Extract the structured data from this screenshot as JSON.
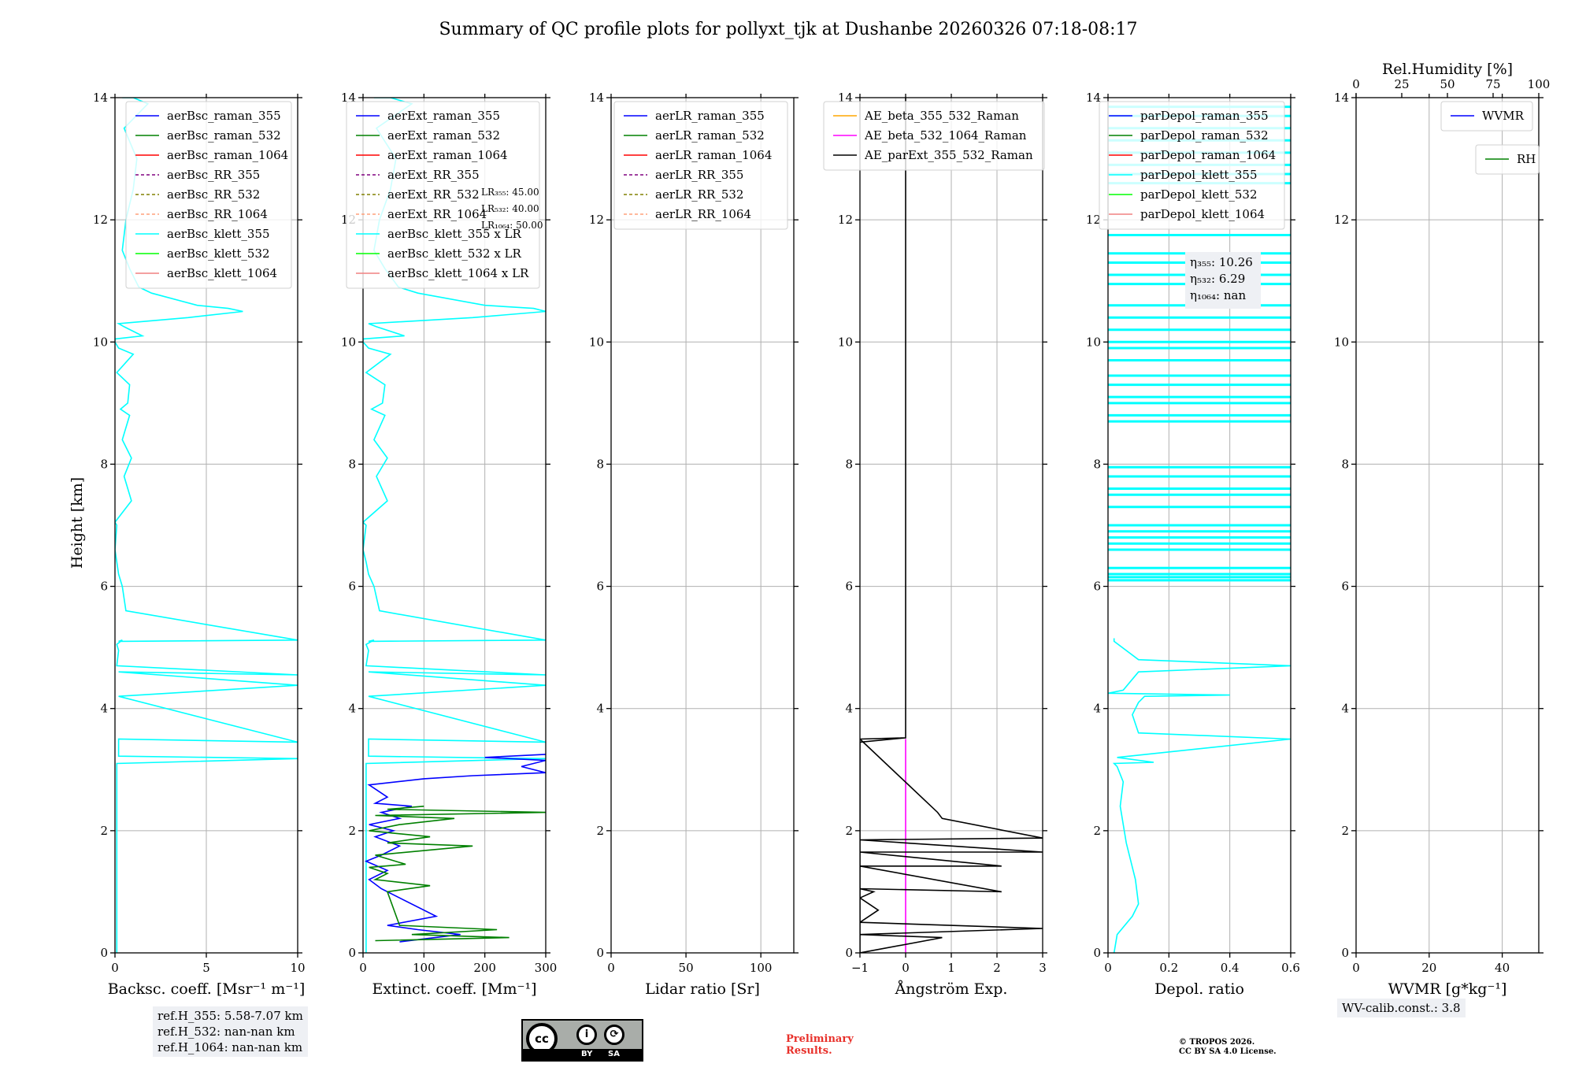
{
  "title": "Summary of QC profile plots for pollyxt_tjk at Dushanbe 20260326 07:18-08:17",
  "colors": {
    "blue": "#0000ff",
    "green": "#008000",
    "red": "#ff0000",
    "purple": "#800080",
    "olive": "#808000",
    "salmon": "#ffa07a",
    "cyan": "#00ffff",
    "lime": "#00ff00",
    "lightcoral": "#f08080",
    "orange": "#ffa500",
    "magenta": "#ff00ff",
    "black": "#000000",
    "preliminary": "#e8302a"
  },
  "chart_data": [
    {
      "type": "line",
      "id": "bsc",
      "xlabel": "Backsc. coeff. [Msr⁻¹ m⁻¹]",
      "ylabel": "Height [km]",
      "xlim": [
        0,
        10
      ],
      "ylim": [
        0,
        14
      ],
      "xticks": [
        0,
        5,
        10
      ],
      "yticks": [
        0,
        2,
        4,
        6,
        8,
        10,
        12,
        14
      ],
      "grid": true,
      "legend_position": "top-right",
      "legend": [
        {
          "label": "aerBsc_raman_355",
          "color": "#0000ff",
          "style": "solid"
        },
        {
          "label": "aerBsc_raman_532",
          "color": "#008000",
          "style": "solid"
        },
        {
          "label": "aerBsc_raman_1064",
          "color": "#ff0000",
          "style": "solid"
        },
        {
          "label": "aerBsc_RR_355",
          "color": "#800080",
          "style": "dashed"
        },
        {
          "label": "aerBsc_RR_532",
          "color": "#808000",
          "style": "dashed"
        },
        {
          "label": "aerBsc_RR_1064",
          "color": "#ffa07a",
          "style": "dashed"
        },
        {
          "label": "aerBsc_klett_355",
          "color": "#00ffff",
          "style": "solid"
        },
        {
          "label": "aerBsc_klett_532",
          "color": "#00ff00",
          "style": "solid"
        },
        {
          "label": "aerBsc_klett_1064",
          "color": "#f08080",
          "style": "solid"
        }
      ],
      "series": [
        {
          "name": "aerBsc_klett_355",
          "color": "#00ffff",
          "x": [
            0.1,
            0.1,
            10,
            0.2,
            0.2,
            10,
            0.2,
            10,
            0.2,
            10,
            0.1,
            0.2,
            0.1,
            0.4,
            0.2,
            10,
            0.6,
            0.4,
            0.2,
            0.1,
            0.0,
            0.1,
            0.0,
            0.9,
            0.5,
            0.9,
            0.4,
            0.8,
            0.3,
            0.7,
            0.8,
            0.1,
            1.0,
            0.2,
            0.0,
            0.0,
            1.5,
            0.5,
            0.2,
            4.0,
            7.0,
            6.2,
            4.5,
            2.0,
            1.3,
            0.8,
            0.4,
            0.6,
            1.0,
            1.2,
            0.5,
            1.8,
            1.0,
            0.4
          ],
          "y": [
            0.0,
            3.1,
            3.18,
            3.22,
            3.5,
            3.45,
            4.2,
            4.38,
            4.6,
            4.55,
            4.7,
            4.95,
            5.05,
            5.12,
            5.1,
            5.12,
            5.6,
            6.0,
            6.2,
            6.4,
            6.6,
            7.0,
            7.05,
            7.4,
            7.8,
            8.1,
            8.4,
            8.8,
            8.9,
            9.0,
            9.3,
            9.5,
            9.8,
            9.9,
            10.0,
            10.05,
            10.1,
            10.25,
            10.3,
            10.4,
            10.5,
            10.55,
            10.6,
            10.8,
            10.9,
            11.2,
            11.5,
            12.0,
            12.5,
            13.0,
            13.5,
            13.9,
            14.0,
            14.0
          ]
        }
      ]
    },
    {
      "type": "line",
      "id": "ext",
      "xlabel": "Extinct. coeff. [Mm⁻¹]",
      "xlim": [
        0,
        300
      ],
      "ylim": [
        0,
        14
      ],
      "xticks": [
        0,
        100,
        200,
        300
      ],
      "yticks": [
        0,
        2,
        4,
        6,
        8,
        10,
        12,
        14
      ],
      "grid": true,
      "legend_position": "top-right",
      "legend": [
        {
          "label": "aerExt_raman_355",
          "color": "#0000ff",
          "style": "solid"
        },
        {
          "label": "aerExt_raman_532",
          "color": "#008000",
          "style": "solid"
        },
        {
          "label": "aerExt_raman_1064",
          "color": "#ff0000",
          "style": "solid"
        },
        {
          "label": "aerExt_RR_355",
          "color": "#800080",
          "style": "dashed"
        },
        {
          "label": "aerExt_RR_532",
          "color": "#808000",
          "style": "dashed"
        },
        {
          "label": "aerExt_RR_1064",
          "color": "#ffa07a",
          "style": "dashed"
        },
        {
          "label": "aerBsc_klett_355 x LR",
          "color": "#00ffff",
          "style": "solid"
        },
        {
          "label": "aerBsc_klett_532 x LR",
          "color": "#00ff00",
          "style": "solid"
        },
        {
          "label": "aerBsc_klett_1064 x LR",
          "color": "#f08080",
          "style": "solid"
        }
      ],
      "annotation": [
        "LR₃₅₅: 45.00",
        "LR₅₃₂: 40.00",
        "LR₁₀₆₄: 50.00"
      ],
      "series": [
        {
          "name": "aerBsc_klett_355 x LR",
          "color": "#00ffff",
          "x": [
            5,
            5,
            300,
            9,
            9,
            300,
            9,
            300,
            9,
            300,
            5,
            9,
            5,
            18,
            9,
            300,
            27,
            18,
            9,
            5,
            0,
            5,
            0,
            40,
            22,
            40,
            18,
            36,
            14,
            32,
            36,
            5,
            45,
            9,
            0,
            0,
            68,
            22,
            9,
            180,
            300,
            280,
            200,
            90,
            58,
            36,
            18,
            27,
            45,
            54,
            22,
            80,
            45,
            18
          ],
          "y": [
            0.0,
            3.1,
            3.18,
            3.22,
            3.5,
            3.45,
            4.2,
            4.38,
            4.6,
            4.55,
            4.7,
            4.95,
            5.05,
            5.12,
            5.1,
            5.12,
            5.6,
            6.0,
            6.2,
            6.4,
            6.6,
            7.0,
            7.05,
            7.4,
            7.8,
            8.1,
            8.4,
            8.8,
            8.9,
            9.0,
            9.3,
            9.5,
            9.8,
            9.9,
            10.0,
            10.05,
            10.1,
            10.25,
            10.3,
            10.4,
            10.5,
            10.55,
            10.6,
            10.8,
            10.9,
            11.2,
            11.5,
            12.0,
            12.5,
            13.0,
            13.5,
            13.9,
            14.0,
            14.0
          ]
        },
        {
          "name": "aerExt_raman_355",
          "color": "#0000ff",
          "x": [
            60,
            160,
            90,
            40,
            120,
            60,
            30,
            10,
            40,
            5,
            30,
            60,
            20,
            50,
            10,
            60,
            30,
            80,
            20,
            40,
            10,
            100,
            180,
            300,
            260,
            300,
            200,
            300
          ],
          "y": [
            0.18,
            0.3,
            0.38,
            0.45,
            0.6,
            0.9,
            1.05,
            1.2,
            1.35,
            1.5,
            1.6,
            1.75,
            1.9,
            2.0,
            2.1,
            2.2,
            2.3,
            2.4,
            2.45,
            2.55,
            2.75,
            2.85,
            2.9,
            2.95,
            3.05,
            3.15,
            3.2,
            3.25
          ]
        },
        {
          "name": "aerExt_raman_532",
          "color": "#008000",
          "x": [
            20,
            240,
            80,
            220,
            60,
            40,
            110,
            20,
            40,
            10,
            70,
            20,
            180,
            40,
            110,
            10,
            60,
            150,
            20,
            300,
            40,
            100
          ],
          "y": [
            0.2,
            0.25,
            0.3,
            0.38,
            0.45,
            1.0,
            1.1,
            1.2,
            1.3,
            1.4,
            1.45,
            1.6,
            1.75,
            1.8,
            1.9,
            2.0,
            2.1,
            2.2,
            2.25,
            2.3,
            2.35,
            2.4
          ]
        }
      ]
    },
    {
      "type": "line",
      "id": "lr",
      "xlabel": "Lidar ratio [Sr]",
      "xlim": [
        0,
        122
      ],
      "ylim": [
        0,
        14
      ],
      "xticks": [
        0,
        50,
        100
      ],
      "yticks": [
        0,
        2,
        4,
        6,
        8,
        10,
        12,
        14
      ],
      "grid": true,
      "legend_position": "top-right",
      "legend": [
        {
          "label": "aerLR_raman_355",
          "color": "#0000ff",
          "style": "solid"
        },
        {
          "label": "aerLR_raman_532",
          "color": "#008000",
          "style": "solid"
        },
        {
          "label": "aerLR_raman_1064",
          "color": "#ff0000",
          "style": "solid"
        },
        {
          "label": "aerLR_RR_355",
          "color": "#800080",
          "style": "dashed"
        },
        {
          "label": "aerLR_RR_532",
          "color": "#808000",
          "style": "dashed"
        },
        {
          "label": "aerLR_RR_1064",
          "color": "#ffa07a",
          "style": "dashed"
        }
      ],
      "series": []
    },
    {
      "type": "line",
      "id": "ae",
      "xlabel": "Ångström Exp.",
      "xlim": [
        -1,
        3
      ],
      "ylim": [
        0,
        14
      ],
      "xticks": [
        -1,
        0,
        1,
        2,
        3
      ],
      "yticks": [
        0,
        2,
        4,
        6,
        8,
        10,
        12,
        14
      ],
      "grid": true,
      "legend_position": "top-left",
      "legend": [
        {
          "label": "AE_beta_355_532_Raman",
          "color": "#ffa500",
          "style": "solid"
        },
        {
          "label": "AE_beta_532_1064_Raman",
          "color": "#ff00ff",
          "style": "solid"
        },
        {
          "label": "AE_parExt_355_532_Raman",
          "color": "#000000",
          "style": "solid"
        }
      ],
      "series": [
        {
          "name": "AE_beta_532_1064_Raman",
          "color": "#ff00ff",
          "x": [
            0,
            0
          ],
          "y": [
            0,
            3.5
          ]
        },
        {
          "name": "AE_parExt_355_532_Raman",
          "color": "#000000",
          "x": [
            0,
            0,
            -1,
            -1,
            0.8,
            -1,
            3,
            -1,
            -0.6,
            -0.8,
            -1,
            -0.7,
            -1,
            2.1,
            -1,
            2.1,
            -1,
            3,
            -1,
            3,
            0.8,
            0.7,
            -1,
            0,
            0
          ],
          "y": [
            14,
            3.52,
            3.45,
            0.0,
            0.25,
            0.3,
            0.4,
            0.5,
            0.7,
            0.8,
            0.9,
            1.0,
            1.05,
            1.0,
            1.42,
            1.42,
            1.65,
            1.65,
            1.85,
            1.88,
            2.2,
            2.3,
            3.5,
            3.52,
            14
          ]
        }
      ]
    },
    {
      "type": "line",
      "id": "depol",
      "xlabel": "Depol. ratio",
      "xlim": [
        0.0,
        0.6
      ],
      "ylim": [
        0,
        14
      ],
      "xticks": [
        0.0,
        0.2,
        0.4,
        0.6
      ],
      "yticks": [
        0,
        2,
        4,
        6,
        8,
        10,
        12,
        14
      ],
      "grid": true,
      "legend_position": "top-right",
      "legend": [
        {
          "label": "parDepol_raman_355",
          "color": "#0000ff",
          "style": "solid"
        },
        {
          "label": "parDepol_raman_532",
          "color": "#008000",
          "style": "solid"
        },
        {
          "label": "parDepol_raman_1064",
          "color": "#ff0000",
          "style": "solid"
        },
        {
          "label": "parDepol_klett_355",
          "color": "#00ffff",
          "style": "solid"
        },
        {
          "label": "parDepol_klett_532",
          "color": "#00ff00",
          "style": "solid"
        },
        {
          "label": "parDepol_klett_1064",
          "color": "#f08080",
          "style": "solid"
        }
      ],
      "annotation": [
        "η₃₅₅: 10.26",
        "η₅₃₂: 6.29",
        "η₁₀₆₄: nan"
      ],
      "series": [
        {
          "name": "parDepol_klett_355",
          "color": "#00ffff",
          "x": [
            0.02,
            0.03,
            0.08,
            0.1,
            0.09,
            0.06,
            0.04,
            0.05,
            0.03,
            0.02,
            0.15,
            0.03,
            0.6,
            0.1,
            0.08,
            0.1,
            0.12,
            0.4,
            0.0,
            0.05,
            0.1,
            0.6,
            0.1,
            0.02,
            0.02
          ],
          "y": [
            0.0,
            0.3,
            0.6,
            0.8,
            1.2,
            1.8,
            2.4,
            2.8,
            3.05,
            3.1,
            3.12,
            3.2,
            3.5,
            3.6,
            3.9,
            4.1,
            4.2,
            4.22,
            4.25,
            4.3,
            4.6,
            4.7,
            4.8,
            5.1,
            5.15
          ]
        },
        {
          "name": "parDepol_klett_355",
          "color": "#00ffff",
          "kind": "hbands",
          "x_from": 0.0,
          "x_to": 0.6,
          "y": [
            6.1,
            6.15,
            6.2,
            6.3,
            6.6,
            6.7,
            6.8,
            6.9,
            7.0,
            7.3,
            7.5,
            7.6,
            7.8,
            7.95,
            8.7,
            8.8,
            9.0,
            9.1,
            9.3,
            9.45,
            9.7,
            9.9,
            10.0,
            10.2,
            10.4,
            10.6,
            10.95,
            11.1,
            11.3,
            11.45,
            11.75,
            12.6,
            12.75,
            12.9,
            13.1,
            13.3,
            13.5,
            13.7,
            13.85
          ]
        }
      ]
    },
    {
      "type": "line",
      "id": "wv",
      "xlabel": "WVMR [g*kg⁻¹]",
      "top_xlabel": "Rel.Humidity [%]",
      "xlim": [
        0,
        50
      ],
      "top_xlim": [
        0,
        100
      ],
      "ylim": [
        0,
        14
      ],
      "xticks": [
        0,
        20,
        40
      ],
      "top_xticks": [
        0,
        25,
        50,
        75,
        100
      ],
      "yticks": [
        0,
        2,
        4,
        6,
        8,
        10,
        12,
        14
      ],
      "grid": true,
      "legend_position": "top-right",
      "legend": [
        {
          "label": "WVMR",
          "color": "#0000ff",
          "style": "solid"
        }
      ],
      "legend2": [
        {
          "label": "RH",
          "color": "#008000",
          "style": "solid"
        }
      ],
      "series": []
    }
  ],
  "refh_box": {
    "lines": [
      "ref.H_355: 5.58-7.07 km",
      "ref.H_532: nan-nan km",
      "ref.H_1064: nan-nan km"
    ]
  },
  "wv_calib": {
    "text": "WV-calib.const.: 3.8"
  },
  "license_badge": {
    "by": "BY",
    "sa": "SA",
    "cc": "cc"
  },
  "preliminary": {
    "line1": "Preliminary",
    "line2": "Results."
  },
  "copyright": {
    "line1": "© TROPOS 2026.",
    "line2": "CC BY SA 4.0 License."
  }
}
